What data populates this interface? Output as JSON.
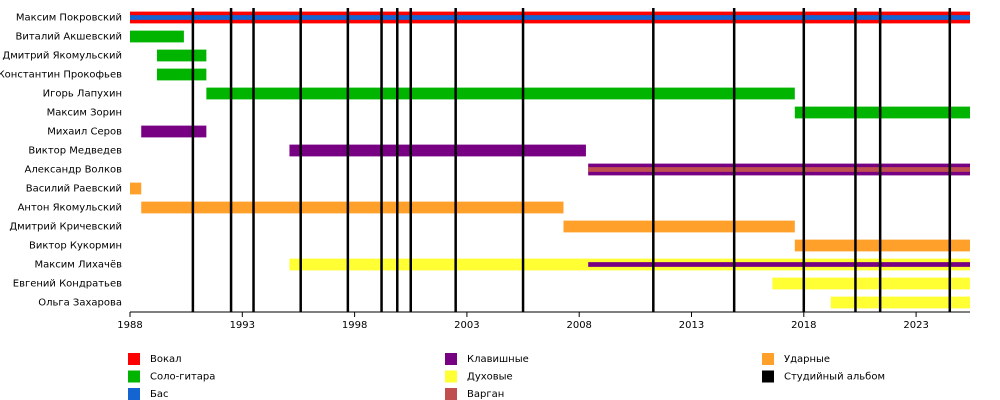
{
  "chart_data": {
    "type": "timeline",
    "xlim": [
      1988,
      2025.4
    ],
    "xticks": [
      1988,
      1993,
      1998,
      2003,
      2008,
      2013,
      2018,
      2023
    ],
    "roles": [
      {
        "name": "Вокал",
        "color": "#ff0000"
      },
      {
        "name": "Соло-гитара",
        "color": "#00b400"
      },
      {
        "name": "Бас",
        "color": "#1464d2"
      },
      {
        "name": "Клавишные",
        "color": "#780082"
      },
      {
        "name": "Духовые",
        "color": "#ffff33"
      },
      {
        "name": "Варган",
        "color": "#c05050"
      },
      {
        "name": "Ударные",
        "color": "#ffa02a"
      }
    ],
    "album_legend": {
      "name": "Студийный альбом",
      "color": "#000000"
    },
    "albums": [
      1990.8,
      1992.5,
      1993.5,
      1995.6,
      1997.7,
      1999.2,
      1999.9,
      2000.5,
      2002.5,
      2005.5,
      2011.3,
      2014.9,
      2018.0,
      2020.3,
      2021.4,
      2024.5
    ],
    "members": [
      {
        "name": "Максим Покровский",
        "segments": [
          {
            "role": "Вокал",
            "start": 1988,
            "end": 2025.4
          },
          {
            "role": "Бас",
            "start": 1988,
            "end": 2025.4
          }
        ]
      },
      {
        "name": "Виталий Акшевский",
        "segments": [
          {
            "role": "Соло-гитара",
            "start": 1988,
            "end": 1990.4
          }
        ]
      },
      {
        "name": "Дмитрий Якомульский",
        "segments": [
          {
            "role": "Соло-гитара",
            "start": 1989.2,
            "end": 1991.4
          }
        ]
      },
      {
        "name": "Константин Прокофьев",
        "segments": [
          {
            "role": "Соло-гитара",
            "start": 1989.2,
            "end": 1991.4
          }
        ]
      },
      {
        "name": "Игорь Лапухин",
        "segments": [
          {
            "role": "Соло-гитара",
            "start": 1991.4,
            "end": 2017.6
          }
        ]
      },
      {
        "name": "Максим Зорин",
        "segments": [
          {
            "role": "Соло-гитара",
            "start": 2017.6,
            "end": 2025.4
          }
        ]
      },
      {
        "name": "Михаил Серов",
        "segments": [
          {
            "role": "Клавишные",
            "start": 1988.5,
            "end": 1991.4
          }
        ]
      },
      {
        "name": "Виктор Медведев",
        "segments": [
          {
            "role": "Клавишные",
            "start": 1995.1,
            "end": 2008.3
          }
        ]
      },
      {
        "name": "Александр Волков",
        "segments": [
          {
            "role": "Клавишные",
            "start": 2008.4,
            "end": 2025.4
          },
          {
            "role": "Варган",
            "start": 2008.4,
            "end": 2025.4
          }
        ]
      },
      {
        "name": "Василий Раевский",
        "segments": [
          {
            "role": "Ударные",
            "start": 1988,
            "end": 1988.5
          }
        ]
      },
      {
        "name": "Антон Якомульский",
        "segments": [
          {
            "role": "Ударные",
            "start": 1988.5,
            "end": 2007.3
          }
        ]
      },
      {
        "name": "Дмитрий Кричевский",
        "segments": [
          {
            "role": "Ударные",
            "start": 2007.3,
            "end": 2017.6
          }
        ]
      },
      {
        "name": "Виктор Кукормин",
        "segments": [
          {
            "role": "Ударные",
            "start": 2017.6,
            "end": 2025.4
          }
        ]
      },
      {
        "name": "Максим Лихачёв",
        "segments": [
          {
            "role": "Духовые",
            "start": 1995.1,
            "end": 2025.4
          },
          {
            "role": "Клавишные",
            "start": 2008.4,
            "end": 2025.4
          }
        ]
      },
      {
        "name": "Евгений Кондратьев",
        "segments": [
          {
            "role": "Духовые",
            "start": 2016.6,
            "end": 2025.4
          }
        ]
      },
      {
        "name": "Ольга Захарова",
        "segments": [
          {
            "role": "Духовые",
            "start": 2019.2,
            "end": 2025.4
          }
        ]
      }
    ]
  }
}
